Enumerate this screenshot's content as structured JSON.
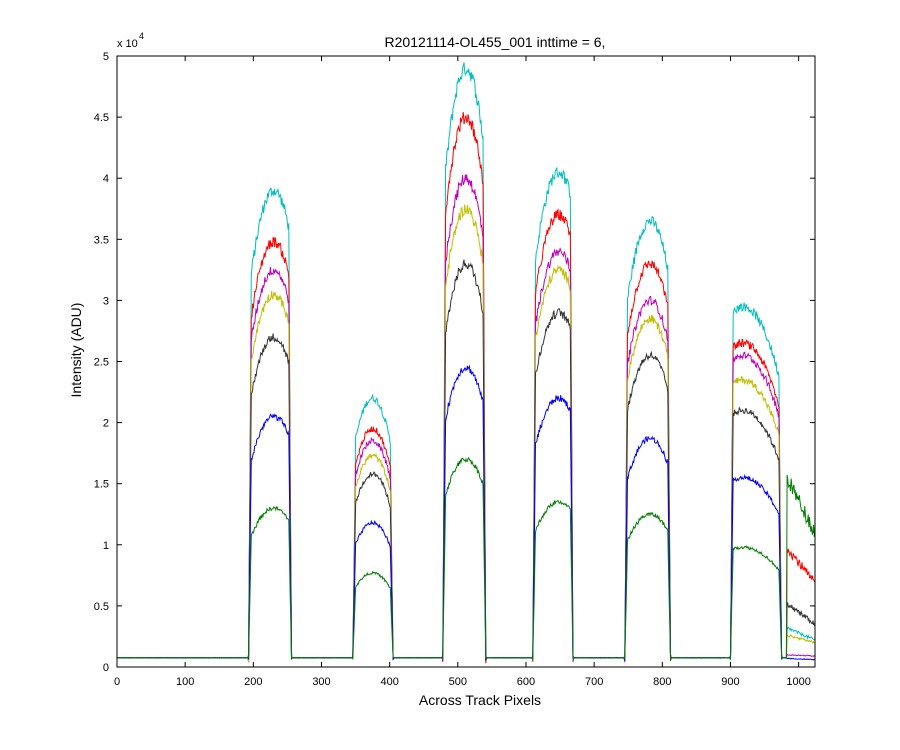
{
  "chart_data": {
    "type": "line",
    "title": "R20121114-OL455_001 inttime = 6,",
    "xlabel": "Across Track Pixels",
    "ylabel": "Intensity (ADU)",
    "exponent_label": "x 10",
    "exponent_power": "4",
    "xlim": [
      0,
      1024
    ],
    "ylim": [
      0,
      50000
    ],
    "xticks": [
      0,
      100,
      200,
      300,
      400,
      500,
      600,
      700,
      800,
      900,
      1000
    ],
    "xtick_labels": [
      "0",
      "100",
      "200",
      "300",
      "400",
      "500",
      "600",
      "700",
      "800",
      "900",
      "1000"
    ],
    "yticks": [
      0,
      5000,
      10000,
      15000,
      20000,
      25000,
      30000,
      35000,
      40000,
      45000,
      50000
    ],
    "ytick_labels": [
      "0",
      "0.5",
      "1",
      "1.5",
      "2",
      "2.5",
      "3",
      "3.5",
      "4",
      "4.5",
      "5"
    ],
    "grid": false,
    "baseline": 750,
    "bands": [
      {
        "start": 193,
        "end": 256,
        "peak": 230
      },
      {
        "start": 346,
        "end": 405,
        "peak": 375
      },
      {
        "start": 478,
        "end": 541,
        "peak": 512
      },
      {
        "start": 610,
        "end": 669,
        "peak": 648
      },
      {
        "start": 745,
        "end": 812,
        "peak": 782
      },
      {
        "start": 900,
        "end": 975,
        "peak": 918
      }
    ],
    "series": [
      {
        "color": "#00BFBF",
        "peaks": [
          39000,
          22000,
          49000,
          40500,
          36500,
          29500
        ],
        "tail_start": 3200,
        "tail_end": 2200
      },
      {
        "color": "#FF0000",
        "peaks": [
          34800,
          19500,
          45000,
          37000,
          33000,
          26500
        ],
        "tail_start": 9800,
        "tail_end": 6800
      },
      {
        "color": "#BF00BF",
        "peaks": [
          32500,
          18500,
          40000,
          34000,
          30000,
          25500
        ],
        "tail_start": 1000,
        "tail_end": 900
      },
      {
        "color": "#BFBF00",
        "peaks": [
          30500,
          17300,
          37500,
          32500,
          28500,
          23500
        ],
        "tail_start": 2600,
        "tail_end": 2000
      },
      {
        "color": "#333333",
        "peaks": [
          27000,
          15800,
          33000,
          29000,
          25500,
          21000
        ],
        "tail_start": 5200,
        "tail_end": 3500
      },
      {
        "color": "#0000FF",
        "peaks": [
          20500,
          11800,
          24500,
          22000,
          18700,
          15500
        ],
        "tail_start": 700,
        "tail_end": 600
      },
      {
        "color": "#008000",
        "peaks": [
          13000,
          7700,
          17000,
          13500,
          12500,
          9800
        ],
        "tail_start": 15500,
        "tail_end": 11000
      }
    ]
  }
}
